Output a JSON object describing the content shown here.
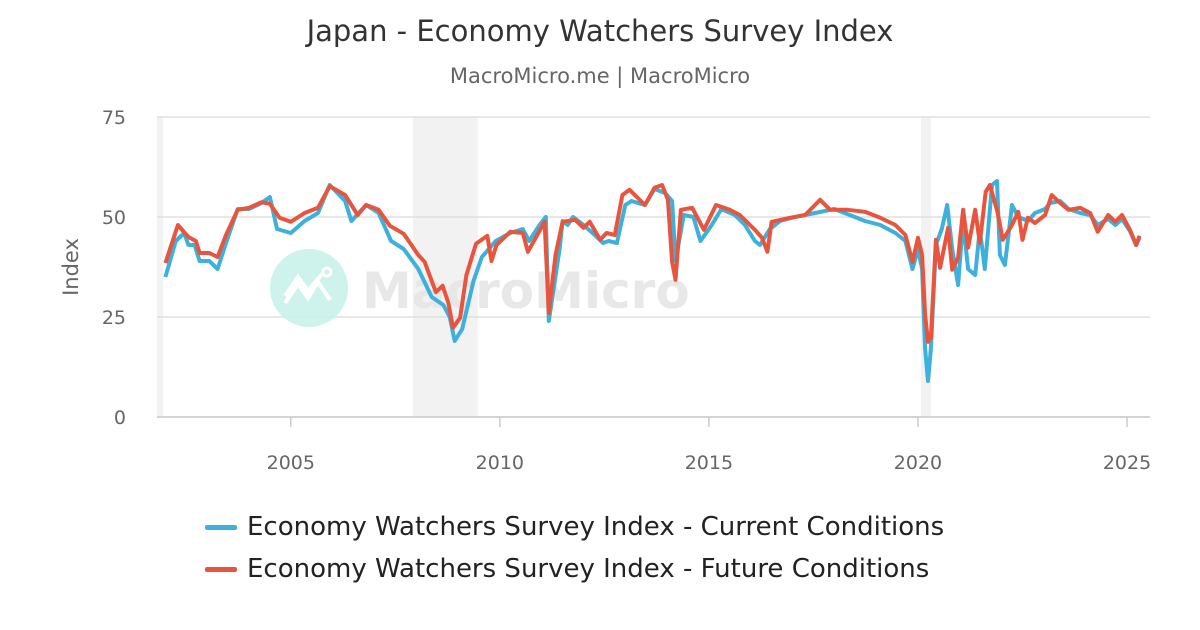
{
  "chart_data": {
    "type": "line",
    "title": "Japan - Economy Watchers Survey Index",
    "subtitle": "MacroMicro.me | MacroMicro",
    "watermark": "MacroMicro",
    "xlabel": "",
    "ylabel": "Index",
    "xlim": [
      2001.8,
      2025.55
    ],
    "ylim": [
      0,
      75
    ],
    "x_ticks": [
      "2005",
      "2010",
      "2015",
      "2020",
      "2025"
    ],
    "y_ticks": [
      "0",
      "25",
      "50",
      "75"
    ],
    "grid": true,
    "legend_position": "bottom",
    "shaded_periods": [
      [
        2001.8,
        2001.95
      ],
      [
        2007.92,
        2009.47
      ],
      [
        2020.07,
        2020.31
      ]
    ],
    "series": [
      {
        "name": "Economy Watchers Survey Index - Current Conditions",
        "color": "#3db0dc",
        "points": [
          [
            2002.0,
            35
          ],
          [
            2002.25,
            44
          ],
          [
            2002.45,
            46
          ],
          [
            2002.55,
            43
          ],
          [
            2002.7,
            43
          ],
          [
            2002.82,
            39
          ],
          [
            2003.05,
            39
          ],
          [
            2003.25,
            37
          ],
          [
            2003.45,
            43.5
          ],
          [
            2003.73,
            52
          ],
          [
            2004.0,
            52
          ],
          [
            2004.3,
            53.5
          ],
          [
            2004.5,
            55
          ],
          [
            2004.67,
            47
          ],
          [
            2005.0,
            46
          ],
          [
            2005.33,
            49
          ],
          [
            2005.65,
            51
          ],
          [
            2005.93,
            58
          ],
          [
            2006.3,
            54
          ],
          [
            2006.45,
            49
          ],
          [
            2006.8,
            53
          ],
          [
            2007.1,
            51
          ],
          [
            2007.4,
            44
          ],
          [
            2007.7,
            42
          ],
          [
            2008.05,
            37
          ],
          [
            2008.37,
            30
          ],
          [
            2008.65,
            28
          ],
          [
            2008.8,
            25
          ],
          [
            2008.92,
            19
          ],
          [
            2009.1,
            22
          ],
          [
            2009.37,
            34
          ],
          [
            2009.57,
            40
          ],
          [
            2009.9,
            44
          ],
          [
            2010.25,
            46
          ],
          [
            2010.55,
            47
          ],
          [
            2010.7,
            44
          ],
          [
            2010.95,
            48
          ],
          [
            2011.1,
            50
          ],
          [
            2011.17,
            24
          ],
          [
            2011.43,
            42
          ],
          [
            2011.5,
            49
          ],
          [
            2011.62,
            48
          ],
          [
            2011.75,
            50
          ],
          [
            2012.0,
            48
          ],
          [
            2012.27,
            45.5
          ],
          [
            2012.47,
            43.5
          ],
          [
            2012.6,
            44
          ],
          [
            2012.8,
            43.5
          ],
          [
            2013.0,
            53
          ],
          [
            2013.15,
            54
          ],
          [
            2013.47,
            53
          ],
          [
            2013.7,
            57
          ],
          [
            2013.95,
            56
          ],
          [
            2014.12,
            54
          ],
          [
            2014.2,
            39
          ],
          [
            2014.4,
            50.5
          ],
          [
            2014.63,
            50
          ],
          [
            2014.8,
            44
          ],
          [
            2015.07,
            48
          ],
          [
            2015.3,
            52
          ],
          [
            2015.62,
            50.5
          ],
          [
            2015.86,
            48
          ],
          [
            2016.1,
            44
          ],
          [
            2016.22,
            43
          ],
          [
            2016.46,
            47
          ],
          [
            2016.7,
            49
          ],
          [
            2017.06,
            50
          ],
          [
            2017.54,
            51
          ],
          [
            2018.0,
            52
          ],
          [
            2018.37,
            50.5
          ],
          [
            2018.73,
            49
          ],
          [
            2019.1,
            48
          ],
          [
            2019.46,
            46
          ],
          [
            2019.7,
            44
          ],
          [
            2019.87,
            37
          ],
          [
            2020.0,
            42
          ],
          [
            2020.1,
            37
          ],
          [
            2020.17,
            17
          ],
          [
            2020.24,
            9
          ],
          [
            2020.31,
            17
          ],
          [
            2020.43,
            43
          ],
          [
            2020.57,
            47
          ],
          [
            2020.7,
            53
          ],
          [
            2020.82,
            42
          ],
          [
            2020.96,
            33
          ],
          [
            2021.08,
            49
          ],
          [
            2021.2,
            37
          ],
          [
            2021.37,
            35.5
          ],
          [
            2021.48,
            47
          ],
          [
            2021.6,
            37
          ],
          [
            2021.77,
            58
          ],
          [
            2021.89,
            59
          ],
          [
            2021.96,
            40.5
          ],
          [
            2022.08,
            38
          ],
          [
            2022.25,
            53
          ],
          [
            2022.4,
            50
          ],
          [
            2022.63,
            49
          ],
          [
            2022.8,
            51
          ],
          [
            2023.04,
            52
          ],
          [
            2023.16,
            53.5
          ],
          [
            2023.4,
            54
          ],
          [
            2023.6,
            52
          ],
          [
            2023.88,
            51
          ],
          [
            2024.12,
            50.5
          ],
          [
            2024.3,
            48
          ],
          [
            2024.55,
            49.5
          ],
          [
            2024.72,
            48
          ],
          [
            2024.88,
            49.5
          ],
          [
            2025.07,
            46.5
          ],
          [
            2025.22,
            43
          ],
          [
            2025.3,
            44.8
          ]
        ]
      },
      {
        "name": "Economy Watchers Survey Index - Future Conditions",
        "color": "#e8553e",
        "points": [
          [
            2002.0,
            38.5
          ],
          [
            2002.3,
            48
          ],
          [
            2002.55,
            45
          ],
          [
            2002.73,
            44
          ],
          [
            2002.82,
            41
          ],
          [
            2003.05,
            41
          ],
          [
            2003.25,
            40
          ],
          [
            2003.45,
            45.5
          ],
          [
            2003.73,
            51.8
          ],
          [
            2004.0,
            52.3
          ],
          [
            2004.3,
            53.7
          ],
          [
            2004.5,
            53.3
          ],
          [
            2004.73,
            49.8
          ],
          [
            2005.0,
            48.8
          ],
          [
            2005.33,
            51
          ],
          [
            2005.65,
            52.3
          ],
          [
            2005.93,
            57.7
          ],
          [
            2006.3,
            55.5
          ],
          [
            2006.6,
            50.5
          ],
          [
            2006.8,
            53
          ],
          [
            2007.1,
            51.8
          ],
          [
            2007.37,
            47.8
          ],
          [
            2007.7,
            45.8
          ],
          [
            2008.05,
            40.5
          ],
          [
            2008.2,
            38.8
          ],
          [
            2008.47,
            31.2
          ],
          [
            2008.63,
            32.8
          ],
          [
            2008.77,
            28.5
          ],
          [
            2008.88,
            22.3
          ],
          [
            2009.05,
            24.8
          ],
          [
            2009.2,
            35.5
          ],
          [
            2009.43,
            43.3
          ],
          [
            2009.7,
            45.3
          ],
          [
            2009.8,
            39
          ],
          [
            2009.92,
            43
          ],
          [
            2010.25,
            46.3
          ],
          [
            2010.55,
            46
          ],
          [
            2010.67,
            41.3
          ],
          [
            2011.07,
            48.8
          ],
          [
            2011.17,
            26
          ],
          [
            2011.33,
            40.5
          ],
          [
            2011.5,
            48.8
          ],
          [
            2011.8,
            49.3
          ],
          [
            2012.0,
            47.3
          ],
          [
            2012.15,
            48.8
          ],
          [
            2012.4,
            44.3
          ],
          [
            2012.55,
            46
          ],
          [
            2012.75,
            45.5
          ],
          [
            2012.93,
            55.5
          ],
          [
            2013.1,
            56.8
          ],
          [
            2013.47,
            53
          ],
          [
            2013.7,
            57.3
          ],
          [
            2013.88,
            58
          ],
          [
            2014.02,
            54.3
          ],
          [
            2014.12,
            38.8
          ],
          [
            2014.2,
            34.3
          ],
          [
            2014.33,
            51.8
          ],
          [
            2014.6,
            52.3
          ],
          [
            2014.88,
            46.8
          ],
          [
            2015.17,
            53
          ],
          [
            2015.5,
            51.8
          ],
          [
            2015.74,
            50.5
          ],
          [
            2016.1,
            46.8
          ],
          [
            2016.27,
            44.8
          ],
          [
            2016.4,
            41.3
          ],
          [
            2016.5,
            48.8
          ],
          [
            2016.94,
            49.8
          ],
          [
            2017.3,
            50.5
          ],
          [
            2017.66,
            54.3
          ],
          [
            2017.9,
            51.8
          ],
          [
            2018.32,
            51.8
          ],
          [
            2018.73,
            51.3
          ],
          [
            2019.1,
            49.8
          ],
          [
            2019.46,
            48
          ],
          [
            2019.7,
            45.5
          ],
          [
            2019.87,
            38.8
          ],
          [
            2020.0,
            44.8
          ],
          [
            2020.1,
            40.5
          ],
          [
            2020.17,
            25.5
          ],
          [
            2020.24,
            18.8
          ],
          [
            2020.31,
            19.8
          ],
          [
            2020.43,
            44.3
          ],
          [
            2020.53,
            37.3
          ],
          [
            2020.72,
            47.3
          ],
          [
            2020.82,
            36.8
          ],
          [
            2020.96,
            39.8
          ],
          [
            2021.08,
            51.8
          ],
          [
            2021.2,
            42.3
          ],
          [
            2021.37,
            51.8
          ],
          [
            2021.48,
            43.5
          ],
          [
            2021.62,
            56.3
          ],
          [
            2021.72,
            58
          ],
          [
            2021.9,
            51.3
          ],
          [
            2022.03,
            44.3
          ],
          [
            2022.25,
            48
          ],
          [
            2022.4,
            51.3
          ],
          [
            2022.5,
            44.3
          ],
          [
            2022.63,
            49.8
          ],
          [
            2022.8,
            48.5
          ],
          [
            2023.04,
            50.5
          ],
          [
            2023.2,
            55.5
          ],
          [
            2023.4,
            53.5
          ],
          [
            2023.6,
            51.8
          ],
          [
            2023.88,
            52.3
          ],
          [
            2024.12,
            51
          ],
          [
            2024.3,
            46.3
          ],
          [
            2024.55,
            50.5
          ],
          [
            2024.72,
            48.8
          ],
          [
            2024.88,
            50.5
          ],
          [
            2025.07,
            46.8
          ],
          [
            2025.22,
            43
          ],
          [
            2025.3,
            45.3
          ]
        ]
      }
    ]
  }
}
